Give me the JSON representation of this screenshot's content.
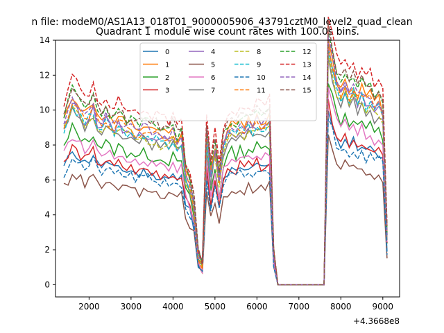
{
  "figure": {
    "suptitle": "n file: modeM0/AS1A13_018T01_9000005906_43791cztM0_level2_quad_clean",
    "title": "Quadrant 1 module wise count rates with 100.0s bins.",
    "offset_text": "+4.3668e8"
  },
  "chart_data": {
    "type": "line",
    "title": "Quadrant 1 module wise count rates with 100.0s bins.",
    "xlabel": "",
    "ylabel": "",
    "xlim": [
      1200,
      9400
    ],
    "ylim": [
      -0.7,
      14
    ],
    "x_ticks": [
      2000,
      3000,
      4000,
      5000,
      6000,
      7000,
      8000,
      9000
    ],
    "y_ticks": [
      0,
      2,
      4,
      6,
      8,
      10,
      12,
      14
    ],
    "grid": false,
    "legend": {
      "placement": "top-center",
      "columns": 4
    },
    "x": [
      1400,
      1500,
      1600,
      1700,
      1800,
      1900,
      2000,
      2100,
      2200,
      2300,
      2400,
      2500,
      2600,
      2700,
      2800,
      2900,
      3000,
      3100,
      3200,
      3300,
      3400,
      3500,
      3600,
      3700,
      3800,
      3900,
      4000,
      4100,
      4200,
      4300,
      4400,
      4500,
      4600,
      4700,
      4800,
      4900,
      5000,
      5100,
      5200,
      5300,
      5400,
      5500,
      5600,
      5700,
      5800,
      5900,
      6000,
      6100,
      6200,
      6300,
      6400,
      6500,
      6600,
      6700,
      6800,
      6900,
      7000,
      7100,
      7200,
      7300,
      7400,
      7500,
      7600,
      7700,
      7800,
      7900,
      8000,
      8100,
      8200,
      8300,
      8400,
      8500,
      8600,
      8700,
      8800,
      8900,
      9000,
      9100
    ],
    "base_profile": [
      8,
      8.5,
      9.2,
      8.9,
      8.6,
      8.3,
      8.5,
      8.9,
      8.2,
      8.1,
      8.3,
      8.0,
      7.8,
      8.1,
      7.9,
      7.7,
      7.8,
      7.6,
      7.5,
      7.7,
      7.6,
      7.4,
      7.5,
      7.3,
      7.4,
      7.2,
      7.5,
      7.0,
      7.3,
      5.5,
      5.0,
      4.0,
      1.5,
      1.0,
      7.5,
      5.5,
      6.8,
      5.2,
      7.0,
      7.5,
      7.8,
      7.6,
      7.9,
      7.7,
      8.0,
      7.8,
      8.1,
      7.9,
      8.0,
      8.2,
      1.5,
      0,
      0,
      0,
      0,
      0,
      0,
      0,
      0,
      0,
      0,
      0,
      0,
      12,
      11,
      10,
      9.5,
      10,
      9.4,
      9.8,
      9.2,
      9.6,
      9.1,
      9.3,
      8.8,
      9.0,
      8.5,
      2.5
    ],
    "series": [
      {
        "name": "0",
        "scale": 0.84,
        "seed": 11,
        "color": "#1f77b4",
        "dash": "solid"
      },
      {
        "name": "1",
        "scale": 1.18,
        "seed": 12,
        "color": "#ff7f0e",
        "dash": "solid"
      },
      {
        "name": "2",
        "scale": 0.98,
        "seed": 13,
        "color": "#2ca02c",
        "dash": "solid"
      },
      {
        "name": "3",
        "scale": 0.86,
        "seed": 14,
        "color": "#d62728",
        "dash": "solid"
      },
      {
        "name": "4",
        "scale": 1.13,
        "seed": 15,
        "color": "#9467bd",
        "dash": "solid"
      },
      {
        "name": "5",
        "scale": 0.7,
        "seed": 16,
        "color": "#8c564b",
        "dash": "solid"
      },
      {
        "name": "6",
        "scale": 0.93,
        "seed": 17,
        "color": "#e377c2",
        "dash": "solid"
      },
      {
        "name": "7",
        "scale": 1.08,
        "seed": 18,
        "color": "#7f7f7f",
        "dash": "solid"
      },
      {
        "name": "8",
        "scale": 1.1,
        "seed": 19,
        "color": "#bcbd22",
        "dash": "dashed"
      },
      {
        "name": "9",
        "scale": 1.12,
        "seed": 20,
        "color": "#17becf",
        "dash": "dashed"
      },
      {
        "name": "10",
        "scale": 0.8,
        "seed": 21,
        "color": "#1f77b4",
        "dash": "dashed"
      },
      {
        "name": "11",
        "scale": 1.15,
        "seed": 22,
        "color": "#ff7f0e",
        "dash": "dashed"
      },
      {
        "name": "12",
        "scale": 1.22,
        "seed": 23,
        "color": "#2ca02c",
        "dash": "dashed"
      },
      {
        "name": "13",
        "scale": 1.3,
        "seed": 24,
        "color": "#d62728",
        "dash": "dashed"
      },
      {
        "name": "14",
        "scale": 1.17,
        "seed": 25,
        "color": "#9467bd",
        "dash": "dashed"
      },
      {
        "name": "15",
        "scale": 1.24,
        "seed": 26,
        "color": "#8c564b",
        "dash": "dashed"
      }
    ]
  }
}
